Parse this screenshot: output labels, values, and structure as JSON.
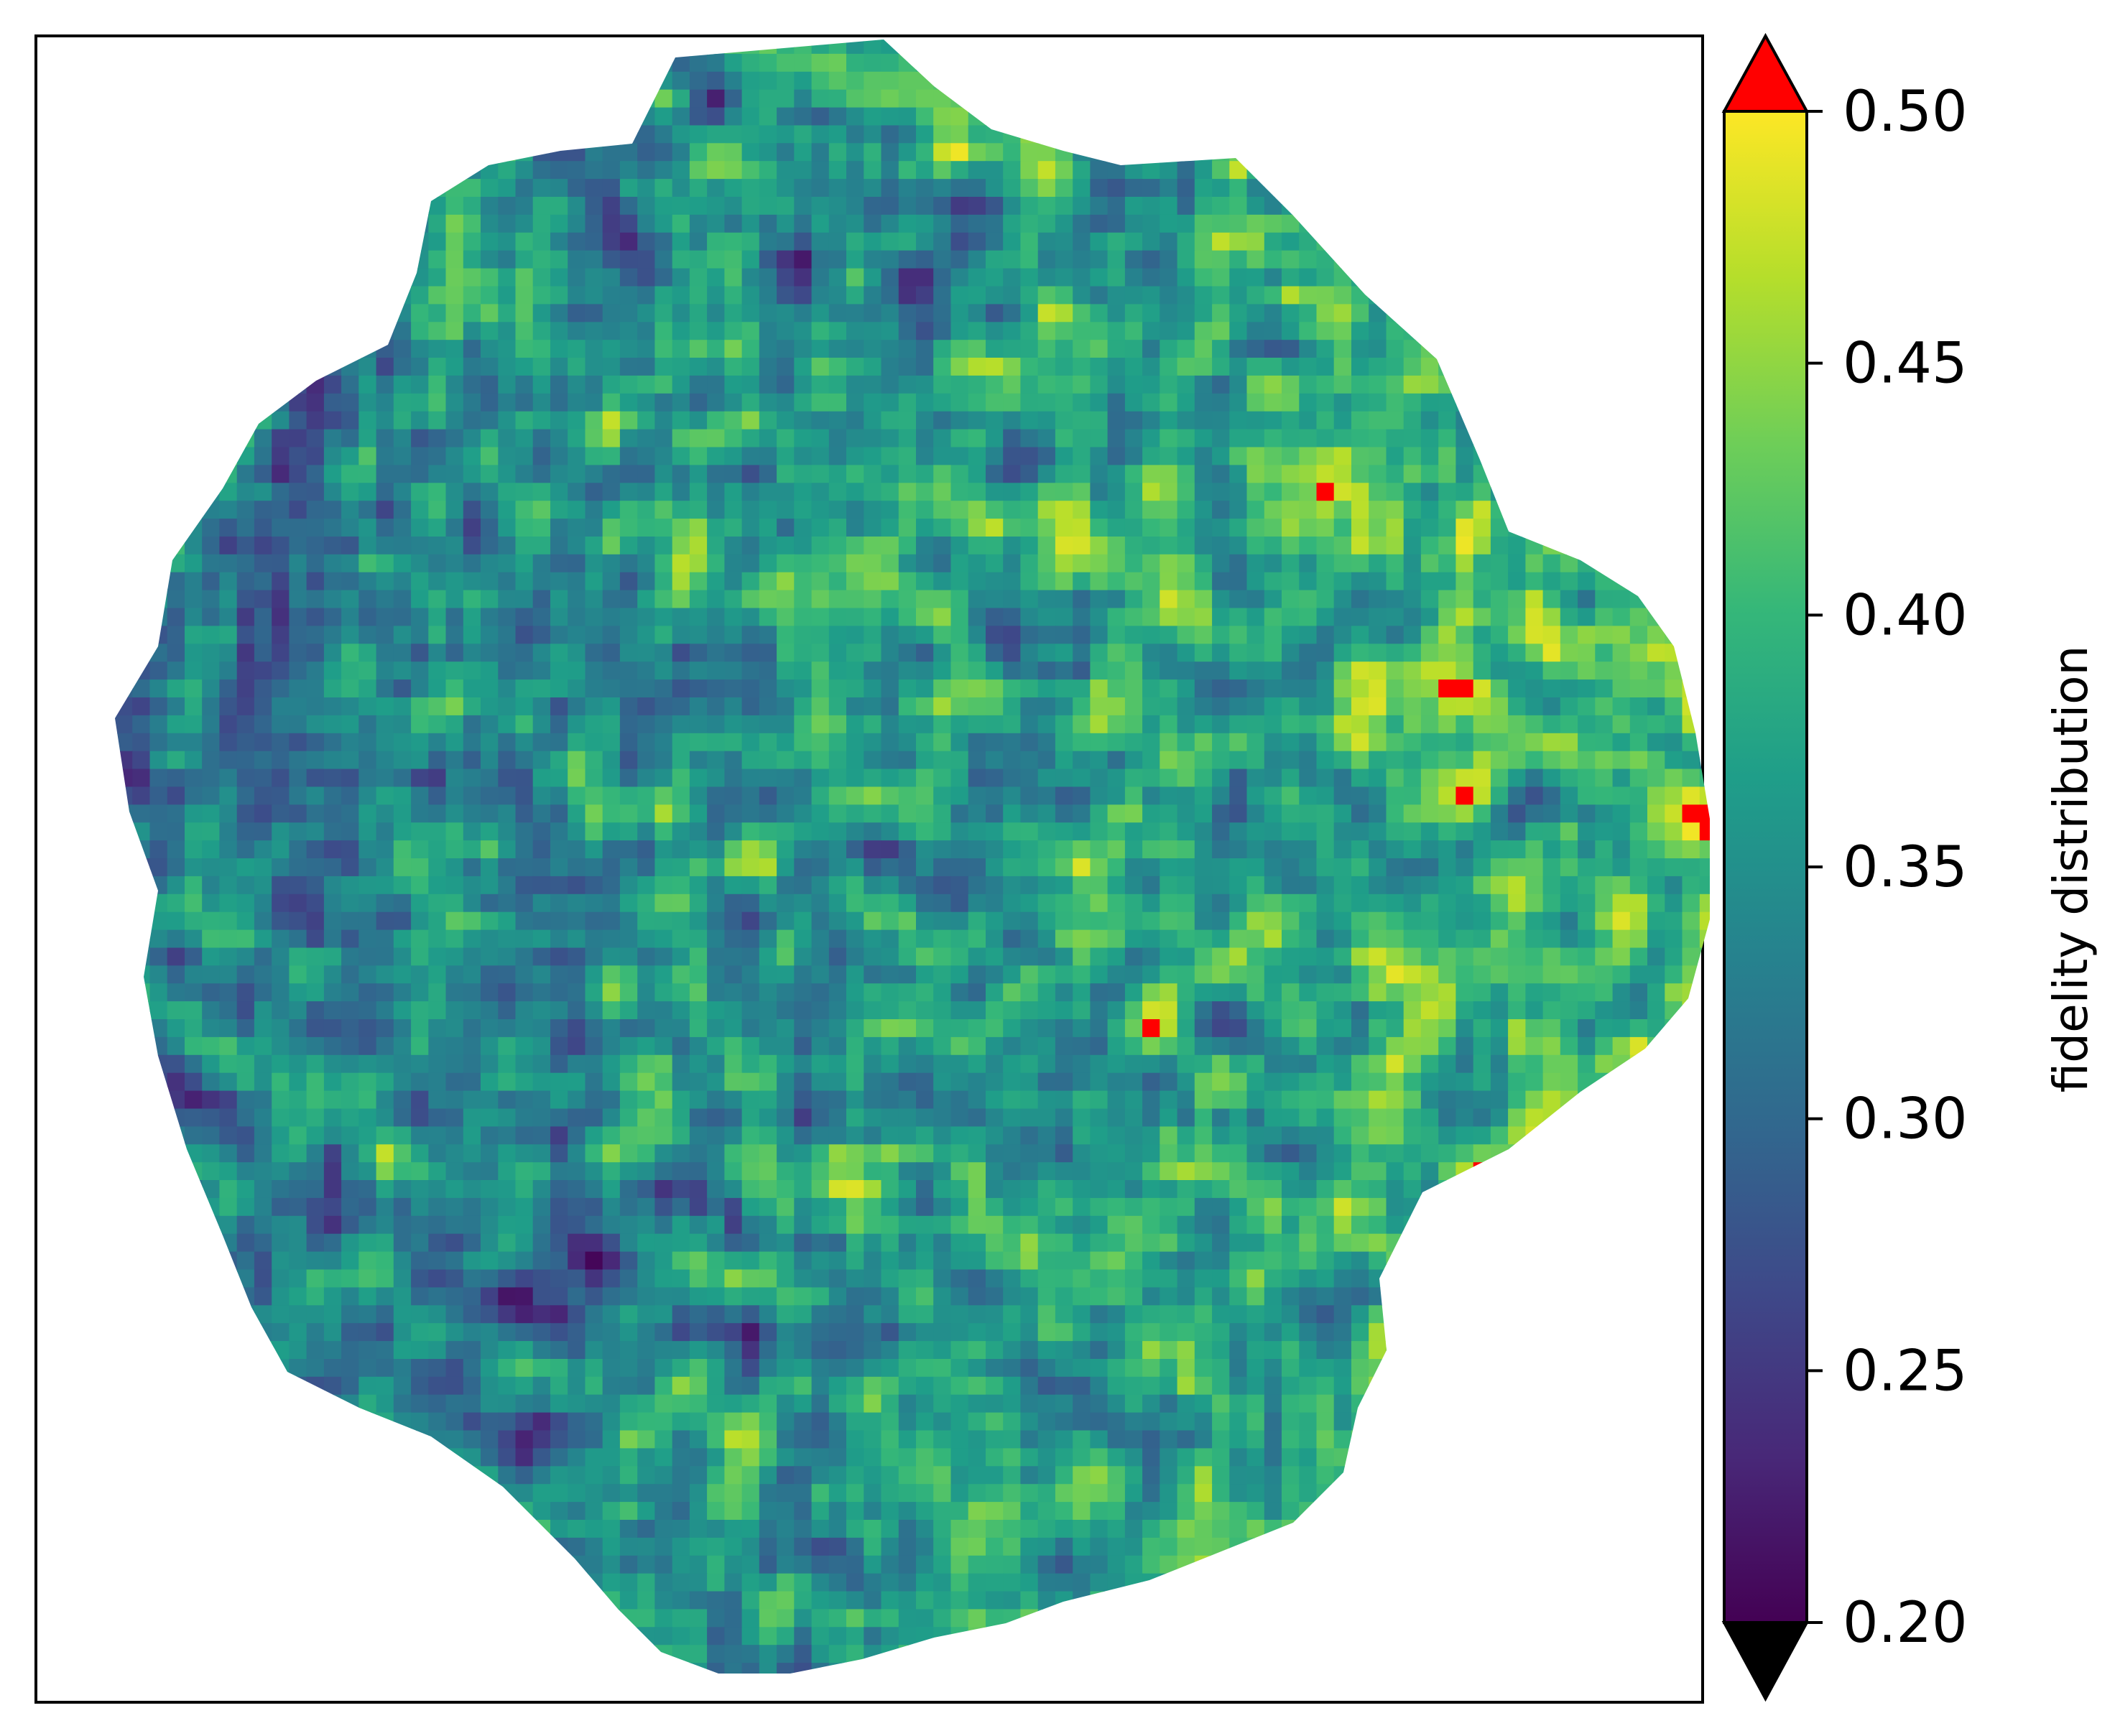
{
  "chart_data": {
    "type": "heatmap",
    "title": "",
    "xlabel": "",
    "ylabel": "",
    "x_ticks_shown": false,
    "y_ticks_shown": false,
    "colormap": "viridis",
    "colorbar": {
      "label": "fidelity distribution",
      "range": [
        0.2,
        0.5
      ],
      "ticks": [
        "0.20",
        "0.25",
        "0.30",
        "0.35",
        "0.40",
        "0.45",
        "0.50"
      ],
      "extend": "both",
      "over_color": "#ff0000",
      "under_color": "#000000",
      "orientation": "vertical",
      "placement": "right"
    },
    "description_values": {
      "region_shape": "irregular roughly circular patch",
      "value_range_shown": [
        0.2,
        0.5
      ]
    }
  },
  "colors": {
    "over": "#ff0000",
    "under": "#000000",
    "viridis_stops": [
      "#440154",
      "#482878",
      "#3e4989",
      "#31688e",
      "#26828e",
      "#1f9e89",
      "#35b779",
      "#6ece58",
      "#b5de2b",
      "#fde725"
    ]
  }
}
